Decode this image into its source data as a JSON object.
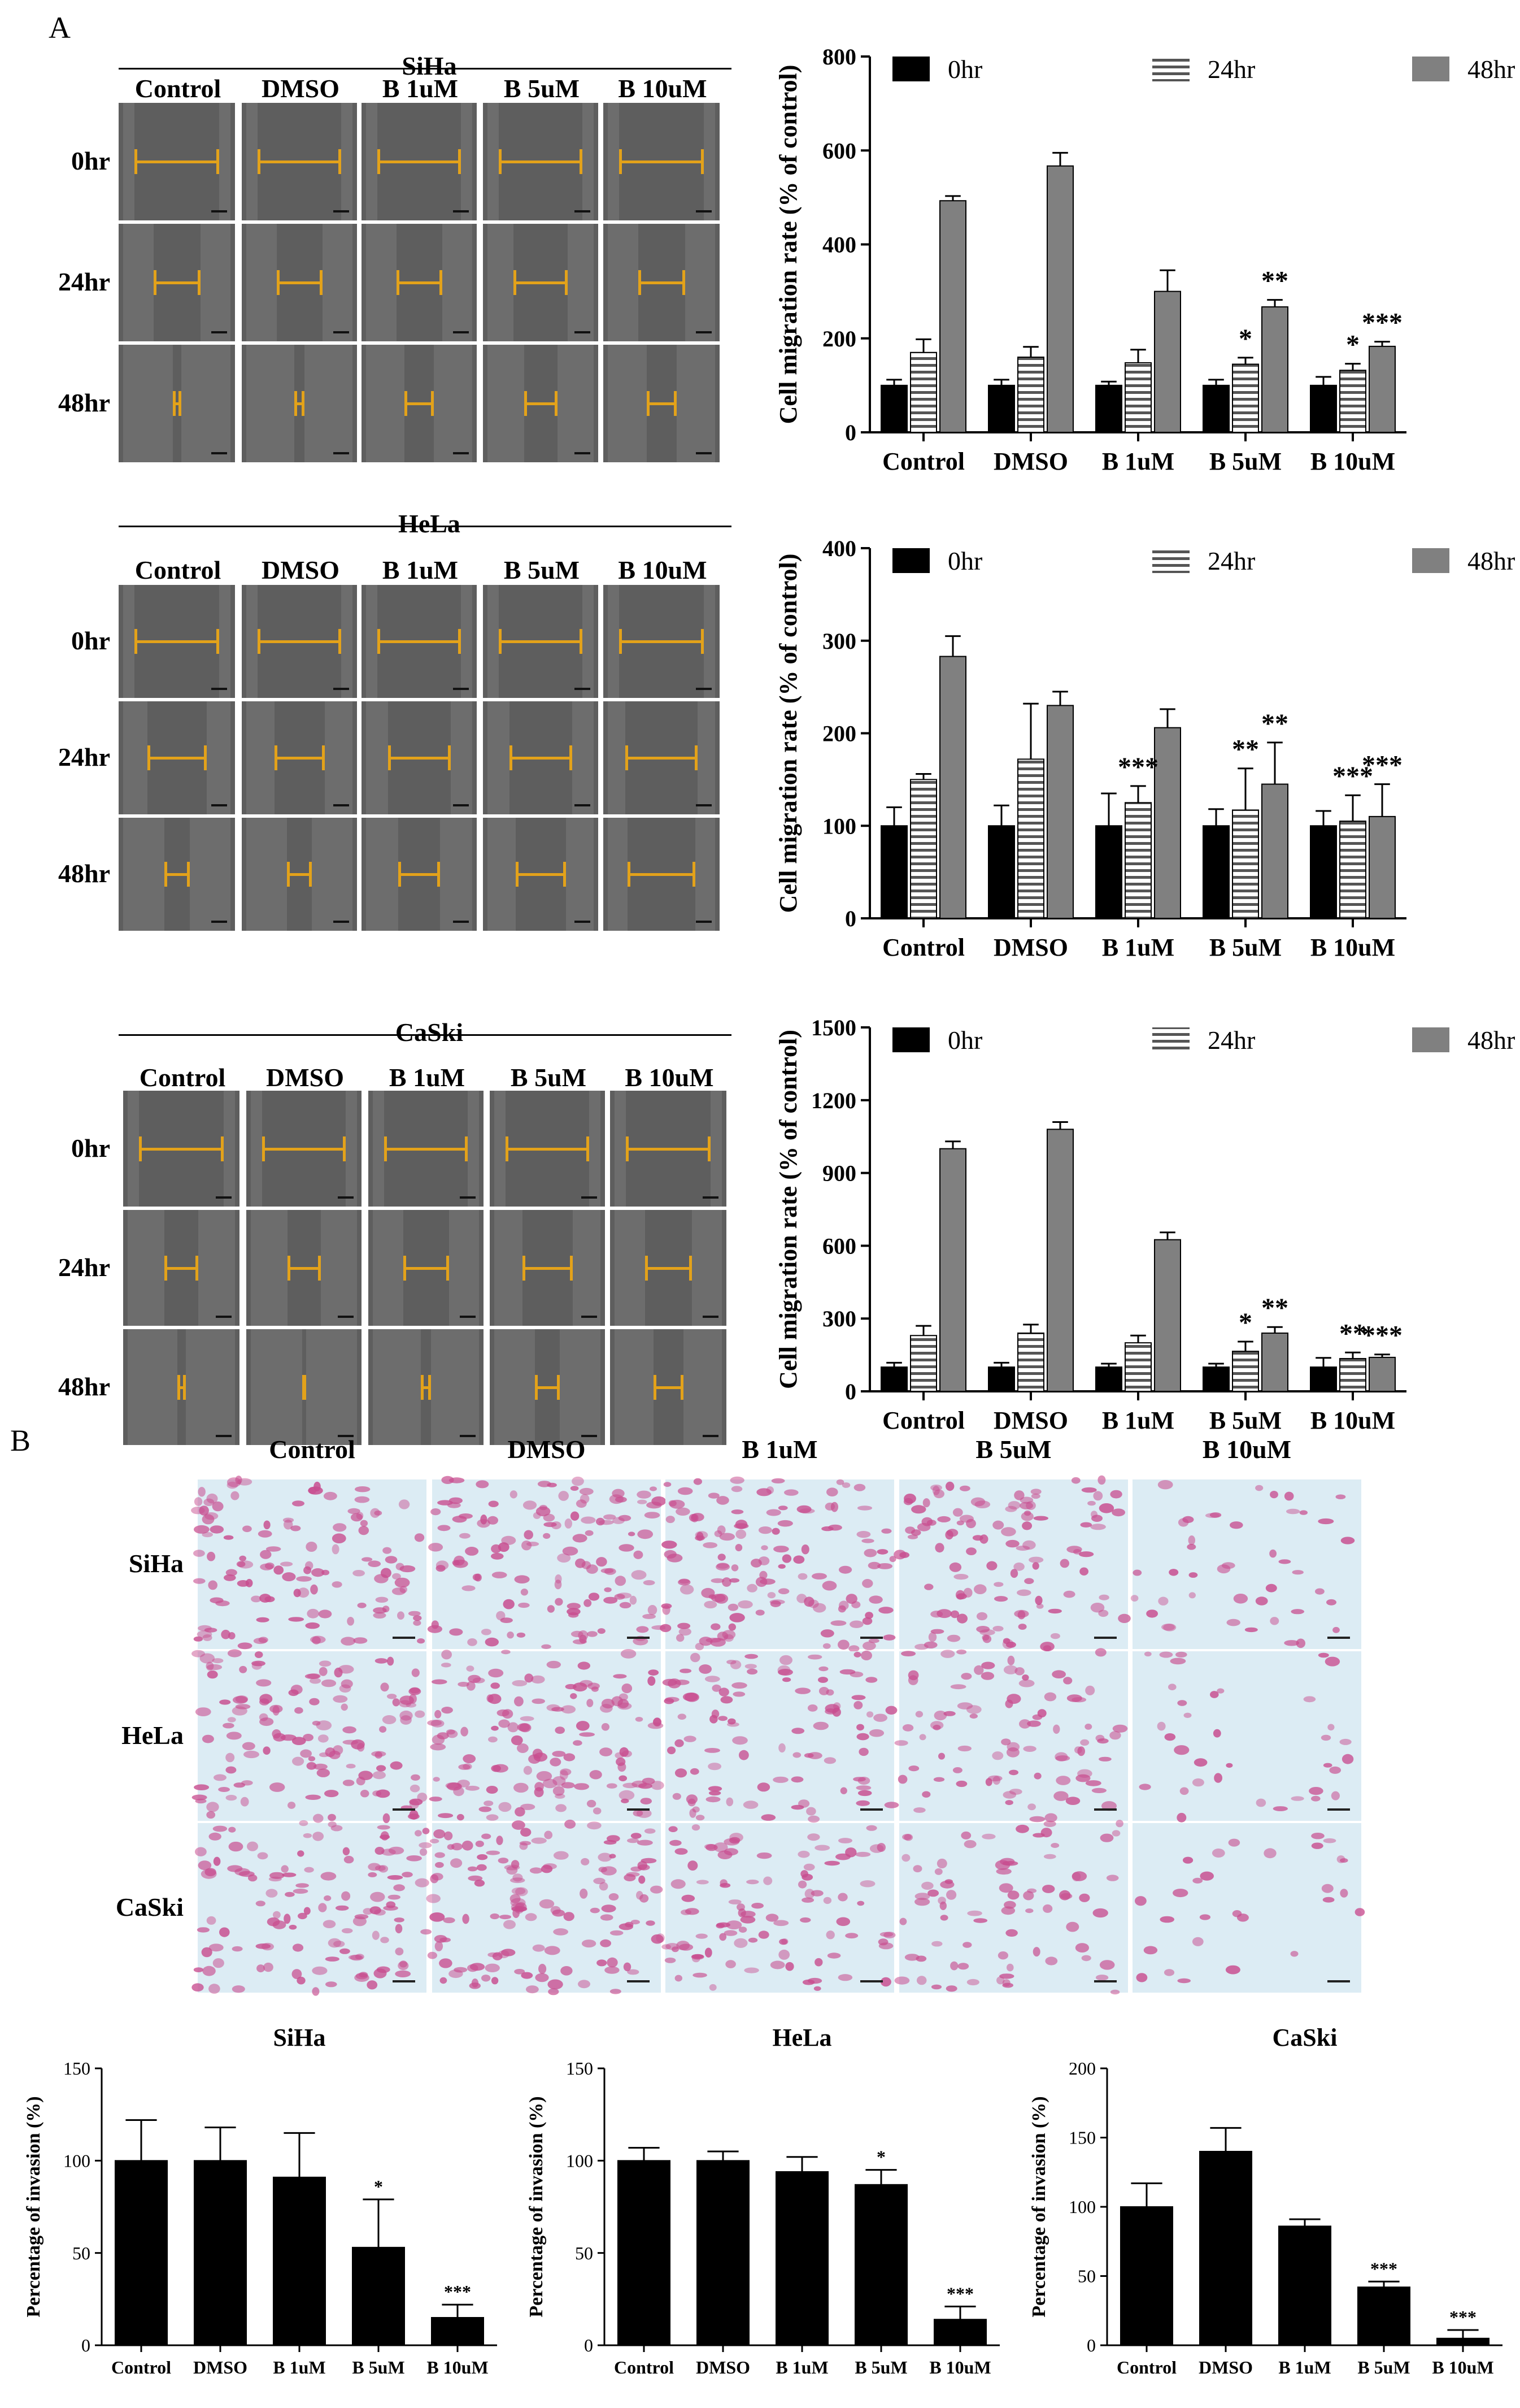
{
  "panel_a_letter": "A",
  "panel_b_letter": "B",
  "wound_panels": [
    {
      "cell_line": "SiHa",
      "conditions": [
        "Control",
        "DMSO",
        "B 1uM",
        "B 5uM",
        "B 10uM"
      ],
      "timepoints": [
        "0hr",
        "24hr",
        "48hr"
      ],
      "gap_fraction": [
        [
          1.0,
          1.0,
          1.0,
          1.0,
          1.0
        ],
        [
          0.55,
          0.55,
          0.55,
          0.65,
          0.55
        ],
        [
          0.1,
          0.12,
          0.35,
          0.4,
          0.35
        ]
      ]
    },
    {
      "cell_line": "HeLa",
      "conditions": [
        "Control",
        "DMSO",
        "B 1uM",
        "B 5uM",
        "B 10uM"
      ],
      "timepoints": [
        "0hr",
        "24hr",
        "48hr"
      ],
      "gap_fraction": [
        [
          1.0,
          1.0,
          1.0,
          1.0,
          1.0
        ],
        [
          0.7,
          0.6,
          0.75,
          0.75,
          0.85
        ],
        [
          0.3,
          0.3,
          0.5,
          0.6,
          0.8
        ]
      ]
    },
    {
      "cell_line": "CaSki",
      "conditions": [
        "Control",
        "DMSO",
        "B 1uM",
        "B 5uM",
        "B 10uM"
      ],
      "timepoints": [
        "0hr",
        "24hr",
        "48hr"
      ],
      "gap_fraction": [
        [
          1.0,
          1.0,
          1.0,
          1.0,
          1.0
        ],
        [
          0.4,
          0.4,
          0.55,
          0.6,
          0.55
        ],
        [
          0.1,
          0.05,
          0.12,
          0.3,
          0.35
        ]
      ]
    }
  ],
  "invasion_images": {
    "conditions": [
      "Control",
      "DMSO",
      "B 1uM",
      "B 5uM",
      "B 10uM"
    ],
    "cell_lines": [
      "SiHa",
      "HeLa",
      "CaSki"
    ],
    "density": [
      [
        0.85,
        0.9,
        0.95,
        0.8,
        0.3
      ],
      [
        0.9,
        0.95,
        0.7,
        0.6,
        0.25
      ],
      [
        0.85,
        0.95,
        0.7,
        0.55,
        0.2
      ]
    ]
  },
  "colors": {
    "series_0hr": "#000000",
    "series_24hr": "#777777",
    "series_48hr": "#808080",
    "micrograph_bg": "#5e5e5e",
    "gap_line": "#e3a21a",
    "stain": "#c84d8f",
    "stain_bg": "#dcecf4"
  },
  "chart_data": [
    {
      "id": "migration_siha",
      "type": "bar",
      "categories": [
        "Control",
        "DMSO",
        "B 1uM",
        "B 5uM",
        "B 10uM"
      ],
      "ylabel": "Cell migration rate (% of control)",
      "ylim": [
        0,
        800
      ],
      "yticks": [
        "0",
        "200",
        "400",
        "600",
        "800"
      ],
      "legend_position": "top",
      "series": [
        {
          "name": "0hr",
          "style": "solid-black",
          "values": [
            100,
            100,
            100,
            100,
            100
          ],
          "errors": [
            12,
            12,
            8,
            12,
            18
          ]
        },
        {
          "name": "24hr",
          "style": "striped",
          "values": [
            170,
            160,
            148,
            145,
            132
          ],
          "errors": [
            28,
            22,
            28,
            14,
            14
          ]
        },
        {
          "name": "48hr",
          "style": "solid-gray",
          "values": [
            493,
            567,
            300,
            267,
            183
          ],
          "errors": [
            10,
            28,
            45,
            15,
            10
          ]
        }
      ],
      "annotations": [
        {
          "category": 3,
          "series": 1,
          "text": "*"
        },
        {
          "category": 3,
          "series": 2,
          "text": "**"
        },
        {
          "category": 4,
          "series": 1,
          "text": "*"
        },
        {
          "category": 4,
          "series": 2,
          "text": "***"
        }
      ]
    },
    {
      "id": "migration_hela",
      "type": "bar",
      "categories": [
        "Control",
        "DMSO",
        "B 1uM",
        "B 5uM",
        "B 10uM"
      ],
      "ylabel": "Cell migration rate (% of control)",
      "ylim": [
        0,
        400
      ],
      "yticks": [
        "0",
        "100",
        "200",
        "300",
        "400"
      ],
      "legend_position": "top",
      "series": [
        {
          "name": "0hr",
          "style": "solid-black",
          "values": [
            100,
            100,
            100,
            100,
            100
          ],
          "errors": [
            20,
            22,
            35,
            18,
            16
          ]
        },
        {
          "name": "24hr",
          "style": "striped",
          "values": [
            150,
            172,
            125,
            117,
            105
          ],
          "errors": [
            6,
            60,
            18,
            45,
            28
          ]
        },
        {
          "name": "48hr",
          "style": "solid-gray",
          "values": [
            283,
            230,
            206,
            145,
            110
          ],
          "errors": [
            22,
            15,
            20,
            45,
            35
          ]
        }
      ],
      "annotations": [
        {
          "category": 2,
          "series": 1,
          "text": "***"
        },
        {
          "category": 3,
          "series": 1,
          "text": "**"
        },
        {
          "category": 3,
          "series": 2,
          "text": "**"
        },
        {
          "category": 4,
          "series": 1,
          "text": "***"
        },
        {
          "category": 4,
          "series": 2,
          "text": "***"
        }
      ]
    },
    {
      "id": "migration_caski",
      "type": "bar",
      "categories": [
        "Control",
        "DMSO",
        "B 1uM",
        "B 5uM",
        "B 10uM"
      ],
      "ylabel": "Cell migration rate (% of control)",
      "ylim": [
        0,
        1500
      ],
      "yticks": [
        "0",
        "300",
        "600",
        "900",
        "1200",
        "1500"
      ],
      "legend_position": "top",
      "series": [
        {
          "name": "0hr",
          "style": "solid-black",
          "values": [
            100,
            100,
            100,
            100,
            100
          ],
          "errors": [
            18,
            18,
            14,
            14,
            38
          ]
        },
        {
          "name": "24hr",
          "style": "striped",
          "values": [
            230,
            240,
            200,
            165,
            135
          ],
          "errors": [
            40,
            35,
            30,
            40,
            25
          ]
        },
        {
          "name": "48hr",
          "style": "solid-gray",
          "values": [
            1000,
            1080,
            625,
            240,
            140
          ],
          "errors": [
            30,
            30,
            30,
            25,
            12
          ]
        }
      ],
      "annotations": [
        {
          "category": 3,
          "series": 1,
          "text": "*"
        },
        {
          "category": 3,
          "series": 2,
          "text": "**"
        },
        {
          "category": 4,
          "series": 1,
          "text": "**"
        },
        {
          "category": 4,
          "series": 2,
          "text": "***"
        }
      ]
    },
    {
      "id": "invasion_siha",
      "type": "bar",
      "title": "SiHa",
      "categories": [
        "Control",
        "DMSO",
        "B 1uM",
        "B 5uM",
        "B 10uM"
      ],
      "ylabel": "Percentage of  invasion (%)",
      "ylim": [
        0,
        150
      ],
      "yticks": [
        "0",
        "50",
        "100",
        "150"
      ],
      "values": [
        100,
        100,
        91,
        53,
        15
      ],
      "errors": [
        22,
        18,
        24,
        26,
        7
      ],
      "annotations": [
        {
          "category": 3,
          "text": "*"
        },
        {
          "category": 4,
          "text": "***"
        }
      ]
    },
    {
      "id": "invasion_hela",
      "type": "bar",
      "title": "HeLa",
      "categories": [
        "Control",
        "DMSO",
        "B 1uM",
        "B 5uM",
        "B 10uM"
      ],
      "ylabel": "Percentage of  invasion (%)",
      "ylim": [
        0,
        150
      ],
      "yticks": [
        "0",
        "50",
        "100",
        "150"
      ],
      "values": [
        100,
        100,
        94,
        87,
        14
      ],
      "errors": [
        7,
        5,
        8,
        8,
        7
      ],
      "annotations": [
        {
          "category": 3,
          "text": "*"
        },
        {
          "category": 4,
          "text": "***"
        }
      ]
    },
    {
      "id": "invasion_caski",
      "type": "bar",
      "title": "CaSki",
      "categories": [
        "Control",
        "DMSO",
        "B 1uM",
        "B 5uM",
        "B 10uM"
      ],
      "ylabel": "Percentage of  invasion (%)",
      "ylim": [
        0,
        200
      ],
      "yticks": [
        "0",
        "50",
        "100",
        "150",
        "200"
      ],
      "values": [
        100,
        140,
        86,
        42,
        5
      ],
      "errors": [
        17,
        17,
        5,
        4,
        6
      ],
      "annotations": [
        {
          "category": 3,
          "text": "***"
        },
        {
          "category": 4,
          "text": "***"
        }
      ]
    }
  ]
}
